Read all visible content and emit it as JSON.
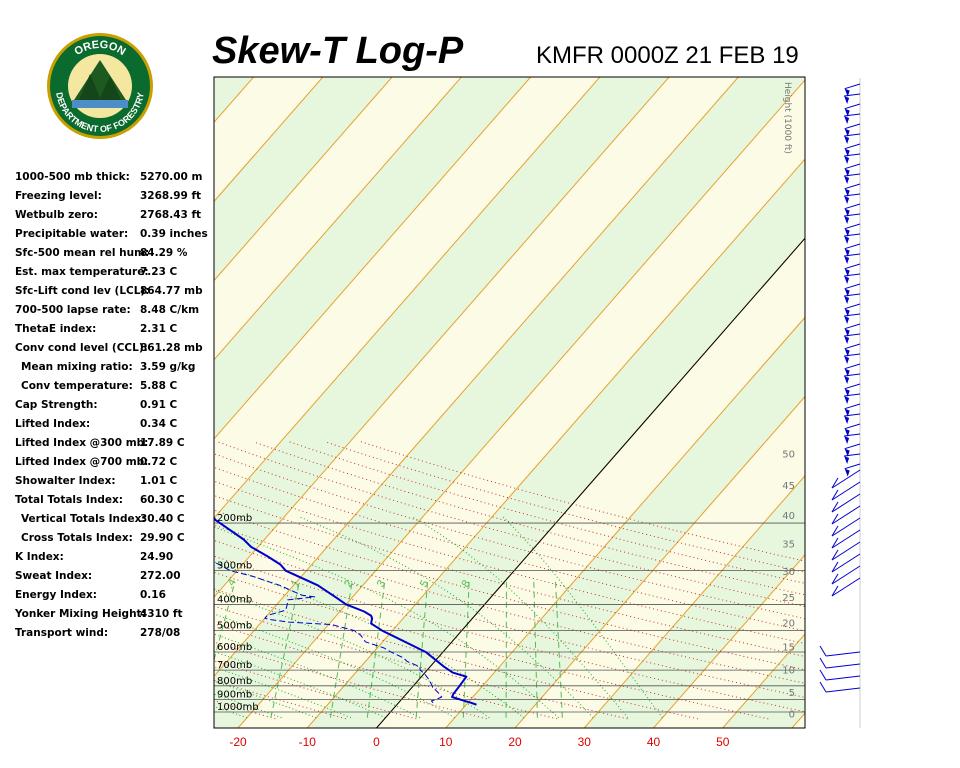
{
  "header": {
    "title": "Skew-T Log-P",
    "station": "KMFR 0000Z 21 FEB 19"
  },
  "logo": {
    "text_top": "OREGON",
    "text_bottom": "DEPARTMENT OF FORESTRY"
  },
  "indices": [
    {
      "label": "1000-500 mb thick:",
      "value": "5270.00 m"
    },
    {
      "label": "Freezing level:",
      "value": "3268.99 ft"
    },
    {
      "label": "Wetbulb zero:",
      "value": "2768.43 ft"
    },
    {
      "label": "Precipitable water:",
      "value": "0.39 inches"
    },
    {
      "label": "Sfc-500 mean rel hum:",
      "value": "84.29 %"
    },
    {
      "label": "Est. max temperature:",
      "value": "7.23 C"
    },
    {
      "label": "Sfc-Lift cond lev (LCL):",
      "value": "864.77 mb"
    },
    {
      "label": "700-500 lapse rate:",
      "value": "8.48 C/km"
    },
    {
      "label": "ThetaE index:",
      "value": "2.31 C"
    },
    {
      "label": "Conv cond level (CCL):",
      "value": "861.28 mb"
    },
    {
      "label": "Mean mixing ratio:",
      "value": "3.59 g/kg",
      "indent": true
    },
    {
      "label": "Conv temperature:",
      "value": "5.88 C",
      "indent": true
    },
    {
      "label": "Cap Strength:",
      "value": "0.91 C"
    },
    {
      "label": "Lifted Index:",
      "value": "0.34 C"
    },
    {
      "label": "Lifted Index @300 mb:",
      "value": "17.89 C"
    },
    {
      "label": "Lifted Index @700 mb:",
      "value": "0.72 C"
    },
    {
      "label": "Showalter Index:",
      "value": "1.01 C"
    },
    {
      "label": "Total Totals Index:",
      "value": "60.30 C"
    },
    {
      "label": "Vertical Totals Index:",
      "value": "30.40 C",
      "indent": true
    },
    {
      "label": "Cross Totals Index:",
      "value": "29.90 C",
      "indent": true
    },
    {
      "label": "K Index:",
      "value": "24.90"
    },
    {
      "label": "Sweat Index:",
      "value": "272.00"
    },
    {
      "label": "Energy Index:",
      "value": "0.16"
    },
    {
      "label": "Yonker Mixing Height:",
      "value": "4310 ft"
    },
    {
      "label": "Transport wind:",
      "value": "278/08"
    }
  ],
  "chart_data": {
    "type": "line",
    "x_axis": {
      "label": "",
      "ticks": [
        -20,
        -10,
        0,
        10,
        20,
        30,
        40,
        50
      ],
      "color": "#dd0000"
    },
    "pressure_levels": [
      {
        "p": 200,
        "label": "200mb"
      },
      {
        "p": 300,
        "label": "300mb"
      },
      {
        "p": 400,
        "label": "400mb"
      },
      {
        "p": 500,
        "label": "500mb"
      },
      {
        "p": 600,
        "label": "600mb"
      },
      {
        "p": 700,
        "label": "700mb"
      },
      {
        "p": 800,
        "label": "800mb"
      },
      {
        "p": 900,
        "label": "900mb"
      },
      {
        "p": 1000,
        "label": "1000mb"
      }
    ],
    "height_axis": {
      "label": "Height (1000 ft)",
      "ticks": [
        0,
        5,
        10,
        15,
        20,
        25,
        30,
        35,
        40,
        45,
        50
      ]
    },
    "mixing_ratio_labels": [
      ".4",
      "1",
      "2",
      "3",
      "5",
      "8"
    ],
    "series": [
      {
        "kind": "temperature",
        "style": "solid",
        "color": "#0000cc",
        "points": [
          {
            "p": 940,
            "t": 11.5
          },
          {
            "p": 925,
            "t": 10.5
          },
          {
            "p": 900,
            "t": 8.5
          },
          {
            "p": 880,
            "t": 7
          },
          {
            "p": 860,
            "t": 6.8
          },
          {
            "p": 810,
            "t": 6.7
          },
          {
            "p": 740,
            "t": 6.5
          },
          {
            "p": 715,
            "t": 4
          },
          {
            "p": 680,
            "t": 2
          },
          {
            "p": 600,
            "t": -2.5
          },
          {
            "p": 500,
            "t": -11.5
          },
          {
            "p": 470,
            "t": -14
          },
          {
            "p": 450,
            "t": -14.5
          },
          {
            "p": 440,
            "t": -15
          },
          {
            "p": 425,
            "t": -16.5
          },
          {
            "p": 400,
            "t": -20
          },
          {
            "p": 380,
            "t": -22
          },
          {
            "p": 340,
            "t": -26.5
          },
          {
            "p": 300,
            "t": -33
          },
          {
            "p": 285,
            "t": -34.5
          },
          {
            "p": 265,
            "t": -37.5
          },
          {
            "p": 245,
            "t": -41
          },
          {
            "p": 230,
            "t": -43
          },
          {
            "p": 195,
            "t": -49.5
          },
          {
            "p": 175,
            "t": -52.5
          },
          {
            "p": 160,
            "t": -55.5
          },
          {
            "p": 150,
            "t": -57.5
          },
          {
            "p": 140,
            "t": -59
          },
          {
            "p": 128,
            "t": -61.5
          },
          {
            "p": 121,
            "t": -62
          }
        ]
      },
      {
        "kind": "dewpoint",
        "style": "dashed",
        "color": "#0000cc",
        "points": [
          {
            "p": 925,
            "t": 5
          },
          {
            "p": 910,
            "t": 4.5
          },
          {
            "p": 900,
            "t": 5
          },
          {
            "p": 880,
            "t": 5.5
          },
          {
            "p": 850,
            "t": 4.5
          },
          {
            "p": 810,
            "t": 3
          },
          {
            "p": 760,
            "t": 1.5
          },
          {
            "p": 720,
            "t": 0
          },
          {
            "p": 700,
            "t": -1
          },
          {
            "p": 680,
            "t": -1.5
          },
          {
            "p": 650,
            "t": -4
          },
          {
            "p": 630,
            "t": -5
          },
          {
            "p": 600,
            "t": -7.5
          },
          {
            "p": 580,
            "t": -9
          },
          {
            "p": 550,
            "t": -12.5
          },
          {
            "p": 520,
            "t": -14
          },
          {
            "p": 500,
            "t": -15.5
          },
          {
            "p": 475,
            "t": -19.5
          },
          {
            "p": 465,
            "t": -26
          },
          {
            "p": 455,
            "t": -29
          },
          {
            "p": 450,
            "t": -30
          },
          {
            "p": 440,
            "t": -30
          },
          {
            "p": 420,
            "t": -28
          },
          {
            "p": 400,
            "t": -28.5
          },
          {
            "p": 385,
            "t": -29
          },
          {
            "p": 375,
            "t": -25.5
          },
          {
            "p": 370,
            "t": -27.5
          },
          {
            "p": 340,
            "t": -32
          },
          {
            "p": 315,
            "t": -37
          },
          {
            "p": 300,
            "t": -41
          },
          {
            "p": 275,
            "t": -45
          },
          {
            "p": 245,
            "t": -48
          },
          {
            "p": 215,
            "t": -51
          },
          {
            "p": 195,
            "t": -55
          },
          {
            "p": 175,
            "t": -57
          },
          {
            "p": 165,
            "t": -60
          },
          {
            "p": 155,
            "t": -61.5
          },
          {
            "p": 145,
            "t": -65
          },
          {
            "p": 132,
            "t": -70
          },
          {
            "p": 125,
            "t": -72
          },
          {
            "p": 121,
            "t": -73
          }
        ]
      }
    ]
  }
}
